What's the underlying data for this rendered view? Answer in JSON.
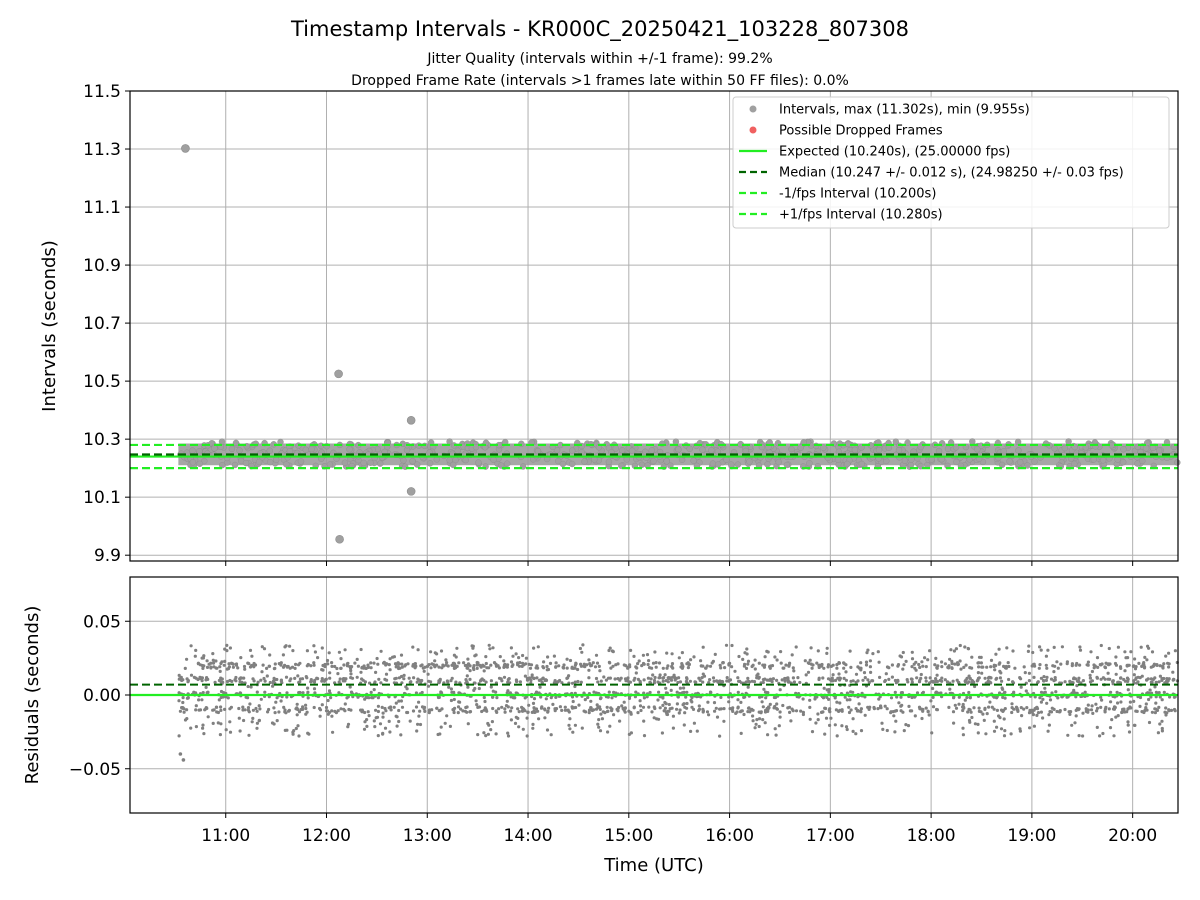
{
  "chart_data": [
    {
      "type": "scatter",
      "panel": "top",
      "title": "Timestamp Intervals - KR000C_20250421_103228_807308",
      "subtitles": [
        "Jitter Quality (intervals within +/-1 frame): 99.2%",
        "Dropped Frame Rate (intervals >1 frames late within 50 FF files): 0.0%"
      ],
      "xlabel": "",
      "ylabel": "Intervals (seconds)",
      "ylim": [
        9.88,
        11.5
      ],
      "yticks": [
        "9.9",
        "10.1",
        "10.3",
        "10.5",
        "10.7",
        "10.9",
        "11.1",
        "11.3",
        "11.5"
      ],
      "xlim_hours": [
        10.05,
        20.45
      ],
      "grid": true,
      "legend_position": "top-right",
      "legend": [
        {
          "label": "Intervals, max (11.302s), min (9.955s)",
          "marker": "dot",
          "color": "#a0a0a0"
        },
        {
          "label": "Possible Dropped Frames",
          "marker": "dot",
          "color": "#f06060"
        },
        {
          "label": "Expected (10.240s), (25.00000 fps)",
          "marker": "line",
          "color": "#22ee22"
        },
        {
          "label": "Median (10.247 +/- 0.012 s), (24.98250 +/- 0.03 fps)",
          "marker": "dashed",
          "color": "#006400"
        },
        {
          "label": "-1/fps Interval (10.200s)",
          "marker": "dashed",
          "color": "#22ee22"
        },
        {
          "label": "+1/fps Interval (10.280s)",
          "marker": "dashed",
          "color": "#22ee22"
        }
      ],
      "reference_lines": {
        "expected": 10.24,
        "median": 10.247,
        "minus_fps": 10.2,
        "plus_fps": 10.28
      },
      "band": {
        "start_hour": 10.53,
        "end_hour": 20.45,
        "low": 10.21,
        "high": 10.285
      },
      "outliers": [
        {
          "x": 10.6,
          "y": 11.302
        },
        {
          "x": 12.12,
          "y": 10.525
        },
        {
          "x": 12.13,
          "y": 9.955
        },
        {
          "x": 12.84,
          "y": 10.365
        },
        {
          "x": 12.84,
          "y": 10.12
        }
      ]
    },
    {
      "type": "scatter",
      "panel": "bottom",
      "xlabel": "Time (UTC)",
      "ylabel": "Residuals (seconds)",
      "ylim": [
        -0.08,
        0.08
      ],
      "yticks": [
        "−0.05",
        "0.00",
        "0.05"
      ],
      "ytick_values": [
        -0.05,
        0,
        0.05
      ],
      "xticks": [
        "11:00",
        "12:00",
        "13:00",
        "14:00",
        "15:00",
        "16:00",
        "17:00",
        "18:00",
        "19:00",
        "20:00"
      ],
      "xtick_values": [
        11,
        12,
        13,
        14,
        15,
        16,
        17,
        18,
        19,
        20
      ],
      "xlim_hours": [
        10.05,
        20.45
      ],
      "grid": true,
      "reference_lines": {
        "expected": 0.0,
        "median": 0.007
      },
      "levels": [
        -0.01,
        0.0,
        0.01,
        0.02
      ],
      "scatter_range": [
        -0.03,
        0.043
      ],
      "outliers": [
        {
          "x": 10.55,
          "y": -0.04
        },
        {
          "x": 10.58,
          "y": -0.044
        }
      ]
    }
  ],
  "colors": {
    "points": "#a0a0a0",
    "residual_points": "#808080",
    "expected": "#22ee22",
    "median": "#006400",
    "grid": "#b0b0b0"
  }
}
